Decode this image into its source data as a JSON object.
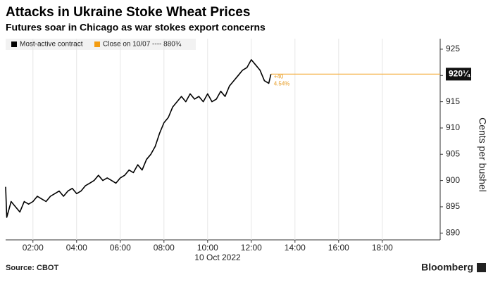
{
  "chart_data": {
    "type": "line",
    "title": "Attacks in Ukraine Stoke Wheat Prices",
    "subtitle": "Futures soar in Chicago as war stokes export concerns",
    "x_label": "10 Oct 2022",
    "y_label": "Cents per bushel",
    "source": "Source: CBOT",
    "brand": "Bloomberg",
    "x": [
      0.75,
      0.8,
      1.0,
      1.2,
      1.4,
      1.6,
      1.8,
      2.0,
      2.2,
      2.4,
      2.6,
      2.8,
      3.0,
      3.2,
      3.4,
      3.6,
      3.8,
      4.0,
      4.2,
      4.4,
      4.6,
      4.8,
      5.0,
      5.2,
      5.4,
      5.6,
      5.8,
      6.0,
      6.2,
      6.4,
      6.6,
      6.8,
      7.0,
      7.2,
      7.4,
      7.6,
      7.8,
      8.0,
      8.2,
      8.4,
      8.6,
      8.8,
      9.0,
      9.2,
      9.4,
      9.6,
      9.8,
      10.0,
      10.2,
      10.4,
      10.6,
      10.8,
      11.0,
      11.2,
      11.4,
      11.6,
      11.8,
      12.0,
      12.2,
      12.4,
      12.6,
      12.8,
      12.9
    ],
    "series": [
      {
        "name": "Most-active contract",
        "color": "#000000",
        "values": [
          898.8,
          893,
          896,
          895,
          894,
          896,
          895.5,
          896,
          897,
          896.5,
          896,
          897,
          897.5,
          898,
          897,
          898,
          898.5,
          897.5,
          898,
          899,
          899.5,
          900,
          901,
          900,
          900.5,
          900,
          899.5,
          900.5,
          901,
          902,
          901.5,
          903,
          902,
          904,
          905,
          906.5,
          909,
          911,
          912,
          914,
          915,
          916,
          915,
          916.5,
          915.5,
          916,
          915,
          916.5,
          915,
          915.5,
          917,
          916,
          918,
          919,
          920,
          921,
          921.5,
          923,
          922,
          921,
          919,
          918.5,
          920.25
        ]
      }
    ],
    "legend_extra": {
      "label": "Close on 10/07 ---- 880¾",
      "color": "#f39c12"
    },
    "reference_line": {
      "value": 920.25,
      "label": "920¼",
      "color": "#f5b041"
    },
    "annotations": [
      "+40",
      "4.54%"
    ],
    "xlim": [
      0.75,
      20.65
    ],
    "xticks": [
      {
        "value": 2,
        "label": "02:00"
      },
      {
        "value": 4,
        "label": "04:00"
      },
      {
        "value": 6,
        "label": "06:00"
      },
      {
        "value": 8,
        "label": "08:00"
      },
      {
        "value": 10,
        "label": "10:00"
      },
      {
        "value": 12,
        "label": "12:00"
      },
      {
        "value": 14,
        "label": "14:00"
      },
      {
        "value": 16,
        "label": "16:00"
      },
      {
        "value": 18,
        "label": "18:00"
      }
    ],
    "ylim": [
      888.7,
      927
    ],
    "yticks": [
      890,
      895,
      900,
      905,
      910,
      915,
      920,
      925
    ],
    "grid": true
  }
}
